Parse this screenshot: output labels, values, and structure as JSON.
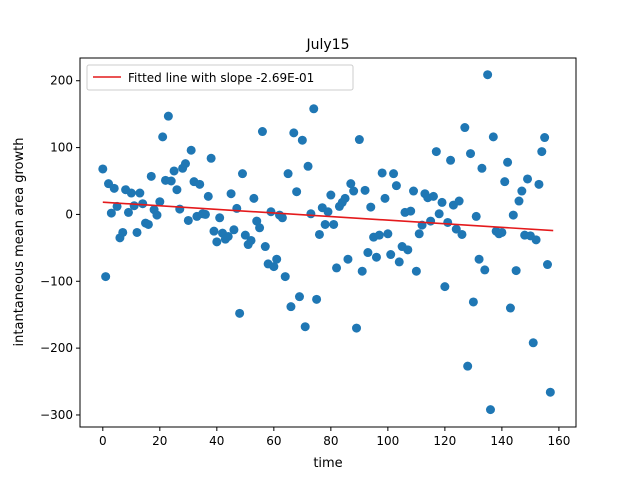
{
  "chart_data": {
    "type": "scatter",
    "title": "July15",
    "xlabel": "time",
    "ylabel": "intantaneous mean area growth",
    "xlim": [
      -8,
      166
    ],
    "ylim": [
      -318,
      234
    ],
    "xticks": [
      0,
      20,
      40,
      60,
      80,
      100,
      120,
      140,
      160
    ],
    "yticks": [
      -300,
      -200,
      -100,
      0,
      100,
      200
    ],
    "grid": false,
    "legend_position": "top-left",
    "point_color": "#1f77b4",
    "line_color": "#e41a1c",
    "fit_line": {
      "label": "Fitted line with slope -2.69E-01",
      "slope": -0.269,
      "intercept": 18.3,
      "x": [
        0,
        158
      ]
    },
    "points": [
      [
        0,
        68
      ],
      [
        1,
        -93
      ],
      [
        2,
        46
      ],
      [
        3,
        2
      ],
      [
        4,
        39
      ],
      [
        5,
        12
      ],
      [
        6,
        -35
      ],
      [
        7,
        -27
      ],
      [
        8,
        37
      ],
      [
        9,
        3
      ],
      [
        10,
        32
      ],
      [
        11,
        13
      ],
      [
        12,
        -27
      ],
      [
        13,
        32
      ],
      [
        14,
        16
      ],
      [
        15,
        -13
      ],
      [
        16,
        -15
      ],
      [
        17,
        57
      ],
      [
        18,
        7
      ],
      [
        19,
        -1
      ],
      [
        20,
        19
      ],
      [
        21,
        116
      ],
      [
        22,
        51
      ],
      [
        23,
        147
      ],
      [
        24,
        50
      ],
      [
        25,
        65
      ],
      [
        26,
        37
      ],
      [
        27,
        8
      ],
      [
        28,
        69
      ],
      [
        29,
        76
      ],
      [
        30,
        -9
      ],
      [
        31,
        96
      ],
      [
        32,
        49
      ],
      [
        33,
        -3
      ],
      [
        34,
        45
      ],
      [
        35,
        1
      ],
      [
        36,
        0
      ],
      [
        37,
        27
      ],
      [
        38,
        84
      ],
      [
        39,
        -25
      ],
      [
        40,
        -41
      ],
      [
        41,
        -5
      ],
      [
        42,
        -28
      ],
      [
        43,
        -37
      ],
      [
        44,
        -33
      ],
      [
        45,
        31
      ],
      [
        46,
        -23
      ],
      [
        47,
        9
      ],
      [
        48,
        -148
      ],
      [
        49,
        61
      ],
      [
        50,
        -31
      ],
      [
        51,
        -45
      ],
      [
        52,
        -39
      ],
      [
        53,
        24
      ],
      [
        54,
        -10
      ],
      [
        55,
        -20
      ],
      [
        56,
        124
      ],
      [
        57,
        -48
      ],
      [
        58,
        -74
      ],
      [
        59,
        4
      ],
      [
        60,
        -78
      ],
      [
        61,
        -67
      ],
      [
        62,
        -1
      ],
      [
        63,
        -5
      ],
      [
        64,
        -93
      ],
      [
        65,
        61
      ],
      [
        66,
        -138
      ],
      [
        67,
        122
      ],
      [
        68,
        34
      ],
      [
        69,
        -123
      ],
      [
        70,
        111
      ],
      [
        71,
        -168
      ],
      [
        72,
        72
      ],
      [
        73,
        1
      ],
      [
        74,
        158
      ],
      [
        75,
        -127
      ],
      [
        76,
        -30
      ],
      [
        77,
        10
      ],
      [
        78,
        -15
      ],
      [
        79,
        4
      ],
      [
        80,
        29
      ],
      [
        81,
        -15
      ],
      [
        82,
        -80
      ],
      [
        83,
        12
      ],
      [
        84,
        18
      ],
      [
        85,
        24
      ],
      [
        86,
        -67
      ],
      [
        87,
        46
      ],
      [
        88,
        35
      ],
      [
        89,
        -170
      ],
      [
        90,
        112
      ],
      [
        91,
        -85
      ],
      [
        92,
        36
      ],
      [
        93,
        -57
      ],
      [
        94,
        11
      ],
      [
        95,
        -34
      ],
      [
        96,
        -64
      ],
      [
        97,
        -31
      ],
      [
        98,
        62
      ],
      [
        99,
        24
      ],
      [
        100,
        -29
      ],
      [
        101,
        -60
      ],
      [
        102,
        61
      ],
      [
        103,
        43
      ],
      [
        104,
        -71
      ],
      [
        105,
        -48
      ],
      [
        106,
        3
      ],
      [
        107,
        -53
      ],
      [
        108,
        5
      ],
      [
        109,
        35
      ],
      [
        110,
        -85
      ],
      [
        111,
        -29
      ],
      [
        112,
        -16
      ],
      [
        113,
        31
      ],
      [
        114,
        25
      ],
      [
        115,
        -10
      ],
      [
        116,
        27
      ],
      [
        117,
        94
      ],
      [
        118,
        1
      ],
      [
        119,
        18
      ],
      [
        120,
        -108
      ],
      [
        121,
        -12
      ],
      [
        122,
        81
      ],
      [
        123,
        14
      ],
      [
        124,
        -22
      ],
      [
        125,
        20
      ],
      [
        126,
        -30
      ],
      [
        127,
        130
      ],
      [
        128,
        -227
      ],
      [
        129,
        91
      ],
      [
        130,
        -131
      ],
      [
        131,
        -3
      ],
      [
        132,
        -67
      ],
      [
        133,
        69
      ],
      [
        134,
        -83
      ],
      [
        135,
        209
      ],
      [
        136,
        -292
      ],
      [
        137,
        116
      ],
      [
        138,
        -25
      ],
      [
        139,
        -29
      ],
      [
        140,
        -27
      ],
      [
        141,
        49
      ],
      [
        142,
        78
      ],
      [
        143,
        -140
      ],
      [
        144,
        -1
      ],
      [
        145,
        -84
      ],
      [
        146,
        20
      ],
      [
        147,
        35
      ],
      [
        148,
        -31
      ],
      [
        149,
        53
      ],
      [
        150,
        -32
      ],
      [
        151,
        -192
      ],
      [
        152,
        -38
      ],
      [
        153,
        45
      ],
      [
        154,
        94
      ],
      [
        155,
        115
      ],
      [
        156,
        -75
      ],
      [
        157,
        -266
      ]
    ]
  }
}
